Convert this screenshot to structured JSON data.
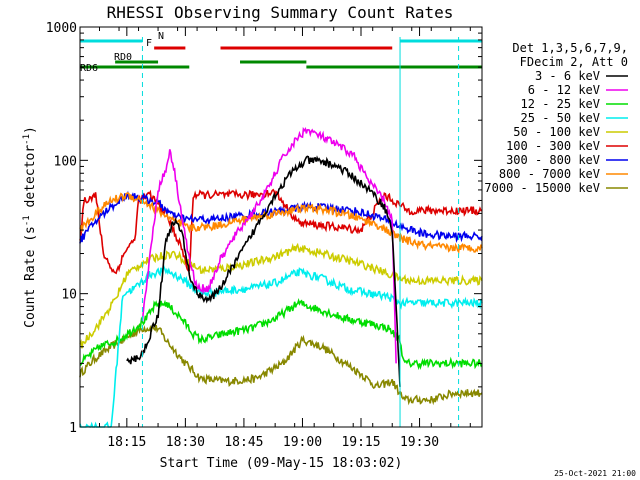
{
  "chart_data": {
    "type": "line",
    "title": "RHESSI Observing Summary Count Rates",
    "xlabel": "Start Time (09-May-15 18:03:02)",
    "ylabel_main": "Count Rate (s",
    "ylabel_sup1": "-1",
    "ylabel_mid": " detector",
    "ylabel_sup2": "-1",
    "ylabel_end": ")",
    "y_scale": "log",
    "ylim": [
      1,
      1000
    ],
    "xlim_min": [
      0,
      103
    ],
    "y_ticks": [
      "1",
      "10",
      "100",
      "1000"
    ],
    "x_ticks": [
      {
        "label": "18:15",
        "t": 12
      },
      {
        "label": "18:30",
        "t": 27
      },
      {
        "label": "18:45",
        "t": 42
      },
      {
        "label": "19:00",
        "t": 57
      },
      {
        "label": "19:15",
        "t": 72
      },
      {
        "label": "19:30",
        "t": 87
      }
    ],
    "footer_date": "25-Oct-2021 21:00",
    "legend_header": [
      "Det 1,3,5,6,7,9,",
      "FDecim 2, Att 0"
    ],
    "legend": [
      {
        "label": "3 - 6 keV",
        "color": "#000000"
      },
      {
        "label": "6 - 12 keV",
        "color": "#ee00ee"
      },
      {
        "label": "12 - 25 keV",
        "color": "#00dd00"
      },
      {
        "label": "25 - 50 keV",
        "color": "#00eeee"
      },
      {
        "label": "50 - 100 keV",
        "color": "#cccc00"
      },
      {
        "label": "100 - 300 keV",
        "color": "#dd0000"
      },
      {
        "label": "300 - 800 keV",
        "color": "#0000ee"
      },
      {
        "label": "800 - 7000 keV",
        "color": "#ff8800"
      },
      {
        "label": "7000 - 15000 keV",
        "color": "#888800"
      }
    ],
    "flags": [
      {
        "label": "N",
        "color": "#00dddd",
        "segments": [
          [
            0,
            16
          ],
          [
            82,
            103
          ]
        ]
      },
      {
        "label": "F",
        "color": "#dd0000",
        "segments": [
          [
            19,
            27
          ],
          [
            36,
            80
          ]
        ]
      },
      {
        "label": "RD0",
        "color": "#008800",
        "segments": [
          [
            9,
            20
          ],
          [
            41,
            58
          ]
        ]
      },
      {
        "label": "RD6",
        "color": "#008800",
        "segments": [
          [
            0,
            28
          ],
          [
            58,
            103
          ]
        ]
      }
    ],
    "series": [
      {
        "color": "#888800",
        "values": [
          [
            0,
            2.5
          ],
          [
            4,
            3.3
          ],
          [
            8,
            4.0
          ],
          [
            16,
            5.5
          ],
          [
            20,
            5.5
          ],
          [
            22,
            4.5
          ],
          [
            27,
            3.0
          ],
          [
            31,
            2.3
          ],
          [
            38,
            2.2
          ],
          [
            45,
            2.3
          ],
          [
            52,
            3.0
          ],
          [
            57,
            4.5
          ],
          [
            62,
            4.0
          ],
          [
            68,
            3.0
          ],
          [
            72,
            2.5
          ],
          [
            76,
            2.0
          ],
          [
            80,
            2.2
          ],
          [
            83,
            1.6
          ],
          [
            90,
            1.6
          ],
          [
            96,
            1.8
          ],
          [
            103,
            1.8
          ]
        ]
      },
      {
        "color": "#00dd00",
        "values": [
          [
            0,
            3.0
          ],
          [
            5,
            4.0
          ],
          [
            10,
            4.5
          ],
          [
            14,
            5.5
          ],
          [
            17,
            6.5
          ],
          [
            19,
            8.0
          ],
          [
            22,
            8.5
          ],
          [
            26,
            6.5
          ],
          [
            29,
            5.0
          ],
          [
            31,
            4.5
          ],
          [
            37,
            5.0
          ],
          [
            44,
            5.5
          ],
          [
            50,
            6.5
          ],
          [
            56,
            8.5
          ],
          [
            62,
            7.5
          ],
          [
            68,
            6.5
          ],
          [
            74,
            6.0
          ],
          [
            79,
            5.5
          ],
          [
            82,
            4.5
          ],
          [
            83,
            3.0
          ],
          [
            103,
            3.0
          ]
        ]
      },
      {
        "color": "#00eeee",
        "values": [
          [
            0,
            1.0
          ],
          [
            4,
            1.0
          ],
          [
            8,
            1.0
          ],
          [
            11,
            10.0
          ],
          [
            14,
            11.0
          ],
          [
            18,
            14.0
          ],
          [
            22,
            15.0
          ],
          [
            26,
            13.0
          ],
          [
            29,
            11.0
          ],
          [
            31,
            10.0
          ],
          [
            37,
            10.5
          ],
          [
            44,
            11.0
          ],
          [
            50,
            12.0
          ],
          [
            56,
            14.5
          ],
          [
            62,
            13.0
          ],
          [
            68,
            11.0
          ],
          [
            74,
            10.0
          ],
          [
            79,
            9.5
          ],
          [
            82,
            8.5
          ],
          [
            85,
            8.5
          ],
          [
            103,
            8.5
          ]
        ]
      },
      {
        "color": "#cccc00",
        "values": [
          [
            0,
            4.0
          ],
          [
            5,
            6.0
          ],
          [
            9,
            9.0
          ],
          [
            12,
            14.0
          ],
          [
            16,
            17.0
          ],
          [
            20,
            19.0
          ],
          [
            24,
            20.0
          ],
          [
            28,
            17.0
          ],
          [
            31,
            15.0
          ],
          [
            37,
            15.5
          ],
          [
            44,
            17.0
          ],
          [
            50,
            19.0
          ],
          [
            56,
            22.0
          ],
          [
            62,
            20.0
          ],
          [
            68,
            18.0
          ],
          [
            74,
            16.0
          ],
          [
            79,
            14.0
          ],
          [
            82,
            13.0
          ],
          [
            85,
            12.5
          ],
          [
            103,
            12.5
          ]
        ]
      },
      {
        "color": "#dd0000",
        "values": [
          [
            0,
            25.0
          ],
          [
            1,
            50.0
          ],
          [
            4,
            55.0
          ],
          [
            6,
            20.0
          ],
          [
            9,
            14.0
          ],
          [
            12,
            22.0
          ],
          [
            14,
            25.0
          ],
          [
            15,
            50.0
          ],
          [
            18,
            55.0
          ],
          [
            22,
            40.0
          ],
          [
            26,
            22.0
          ],
          [
            28,
            14.0
          ],
          [
            29,
            55.0
          ],
          [
            36,
            55.0
          ],
          [
            44,
            55.0
          ],
          [
            50,
            58.0
          ],
          [
            56,
            34.0
          ],
          [
            64,
            32.0
          ],
          [
            72,
            30.0
          ],
          [
            78,
            55.0
          ],
          [
            84,
            42.0
          ],
          [
            103,
            42.0
          ]
        ]
      },
      {
        "color": "#0000ee",
        "values": [
          [
            0,
            25.0
          ],
          [
            4,
            35.0
          ],
          [
            8,
            45.0
          ],
          [
            12,
            55.0
          ],
          [
            16,
            52.0
          ],
          [
            20,
            48.0
          ],
          [
            24,
            38.0
          ],
          [
            28,
            36.0
          ],
          [
            34,
            36.0
          ],
          [
            40,
            38.0
          ],
          [
            46,
            40.0
          ],
          [
            52,
            42.0
          ],
          [
            58,
            45.0
          ],
          [
            64,
            44.0
          ],
          [
            70,
            42.0
          ],
          [
            76,
            38.0
          ],
          [
            82,
            32.0
          ],
          [
            88,
            28.0
          ],
          [
            94,
            27.0
          ],
          [
            103,
            27.0
          ]
        ]
      },
      {
        "color": "#ff8800",
        "values": [
          [
            0,
            30.0
          ],
          [
            4,
            40.0
          ],
          [
            8,
            50.0
          ],
          [
            12,
            55.0
          ],
          [
            16,
            50.0
          ],
          [
            20,
            42.0
          ],
          [
            24,
            35.0
          ],
          [
            28,
            31.0
          ],
          [
            34,
            32.0
          ],
          [
            40,
            35.0
          ],
          [
            46,
            38.0
          ],
          [
            52,
            41.0
          ],
          [
            58,
            44.0
          ],
          [
            64,
            42.0
          ],
          [
            70,
            38.0
          ],
          [
            76,
            33.0
          ],
          [
            82,
            26.0
          ],
          [
            88,
            23.0
          ],
          [
            94,
            22.0
          ],
          [
            103,
            22.0
          ]
        ]
      },
      {
        "color": "#ee00ee",
        "values": [
          [
            16,
            6.5
          ],
          [
            18,
            20.0
          ],
          [
            20,
            60.0
          ],
          [
            22,
            85.0
          ],
          [
            23,
            120.0
          ],
          [
            24,
            90.0
          ],
          [
            26,
            40.0
          ],
          [
            28,
            18.0
          ],
          [
            30,
            11.0
          ],
          [
            33,
            11.0
          ],
          [
            36,
            18.0
          ],
          [
            40,
            28.0
          ],
          [
            44,
            40.0
          ],
          [
            48,
            60.0
          ],
          [
            52,
            105.0
          ],
          [
            56,
            150.0
          ],
          [
            58,
            170.0
          ],
          [
            62,
            150.0
          ],
          [
            66,
            130.0
          ],
          [
            70,
            110.0
          ],
          [
            74,
            70.0
          ],
          [
            78,
            50.0
          ],
          [
            80,
            35.0
          ],
          [
            81,
            3.0
          ]
        ]
      },
      {
        "color": "#000000",
        "values": [
          [
            12,
            3.0
          ],
          [
            16,
            3.5
          ],
          [
            20,
            7.0
          ],
          [
            22,
            25.0
          ],
          [
            24,
            35.0
          ],
          [
            26,
            30.0
          ],
          [
            28,
            14.0
          ],
          [
            30,
            10.0
          ],
          [
            33,
            9.0
          ],
          [
            35,
            10.0
          ],
          [
            38,
            14.0
          ],
          [
            42,
            22.0
          ],
          [
            46,
            35.0
          ],
          [
            50,
            55.0
          ],
          [
            54,
            80.0
          ],
          [
            58,
            100.0
          ],
          [
            62,
            98.0
          ],
          [
            66,
            90.0
          ],
          [
            70,
            75.0
          ],
          [
            74,
            60.0
          ],
          [
            78,
            45.0
          ],
          [
            80,
            30.0
          ],
          [
            82,
            2.0
          ]
        ]
      }
    ]
  }
}
